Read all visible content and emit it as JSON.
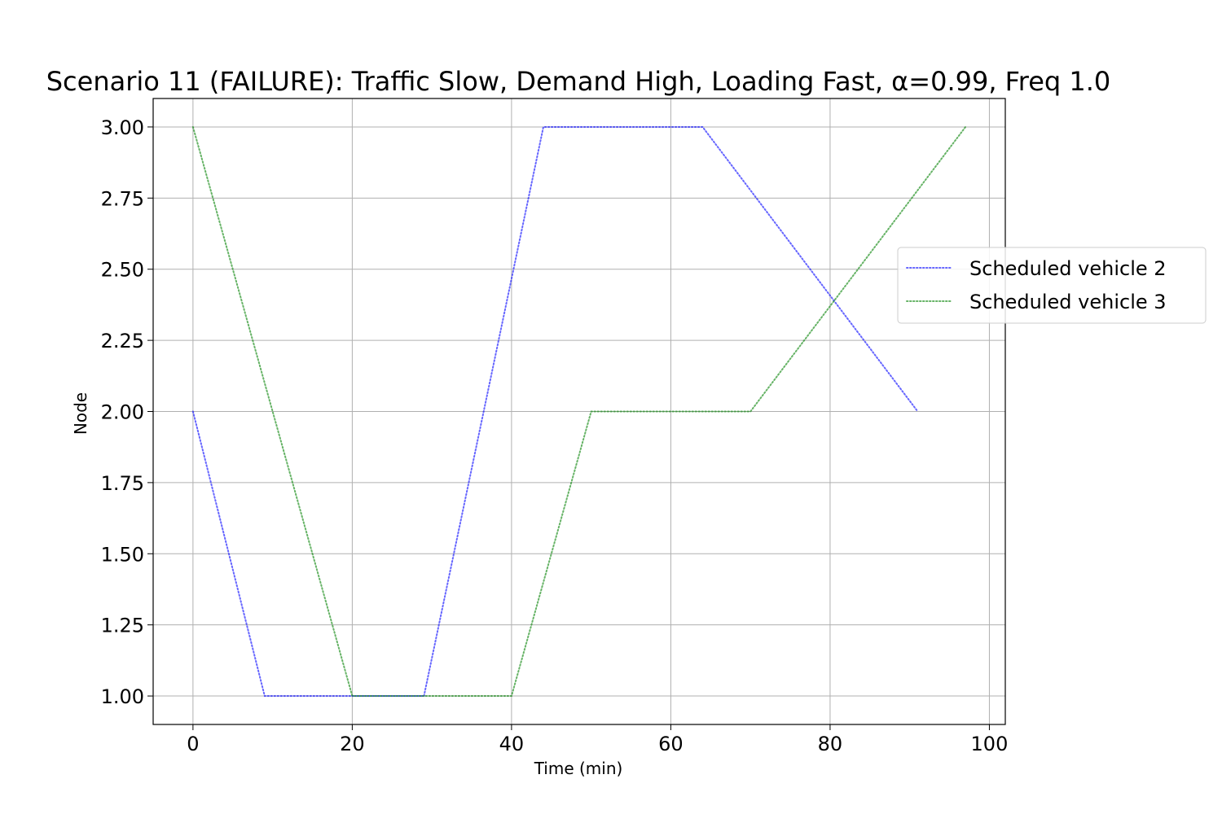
{
  "chart_data": {
    "type": "line",
    "title": "Scenario 11 (FAILURE): Traffic Slow, Demand High, Loading Fast, α=0.99, Freq 1.0",
    "xlabel": "Time (min)",
    "ylabel": "Node",
    "xlim": [
      -5,
      102
    ],
    "ylim": [
      0.9,
      3.1
    ],
    "xticks": [
      0,
      20,
      40,
      60,
      80,
      100
    ],
    "yticks": [
      1.0,
      1.25,
      1.5,
      1.75,
      2.0,
      2.25,
      2.5,
      2.75,
      3.0
    ],
    "ytick_labels": [
      "1.00",
      "1.25",
      "1.50",
      "1.75",
      "2.00",
      "2.25",
      "2.50",
      "2.75",
      "3.00"
    ],
    "grid": true,
    "legend_position": "right",
    "series": [
      {
        "name": "Scheduled vehicle 2",
        "color": "#0000ff",
        "line_style": "dotted",
        "x": [
          0,
          9,
          29,
          44,
          64,
          91
        ],
        "y": [
          2,
          1,
          1,
          3,
          3,
          2
        ]
      },
      {
        "name": "Scheduled vehicle 3",
        "color": "#008000",
        "line_style": "dotted",
        "x": [
          0,
          20,
          40,
          50,
          70,
          97
        ],
        "y": [
          3,
          1,
          1,
          2,
          2,
          3
        ]
      }
    ]
  }
}
